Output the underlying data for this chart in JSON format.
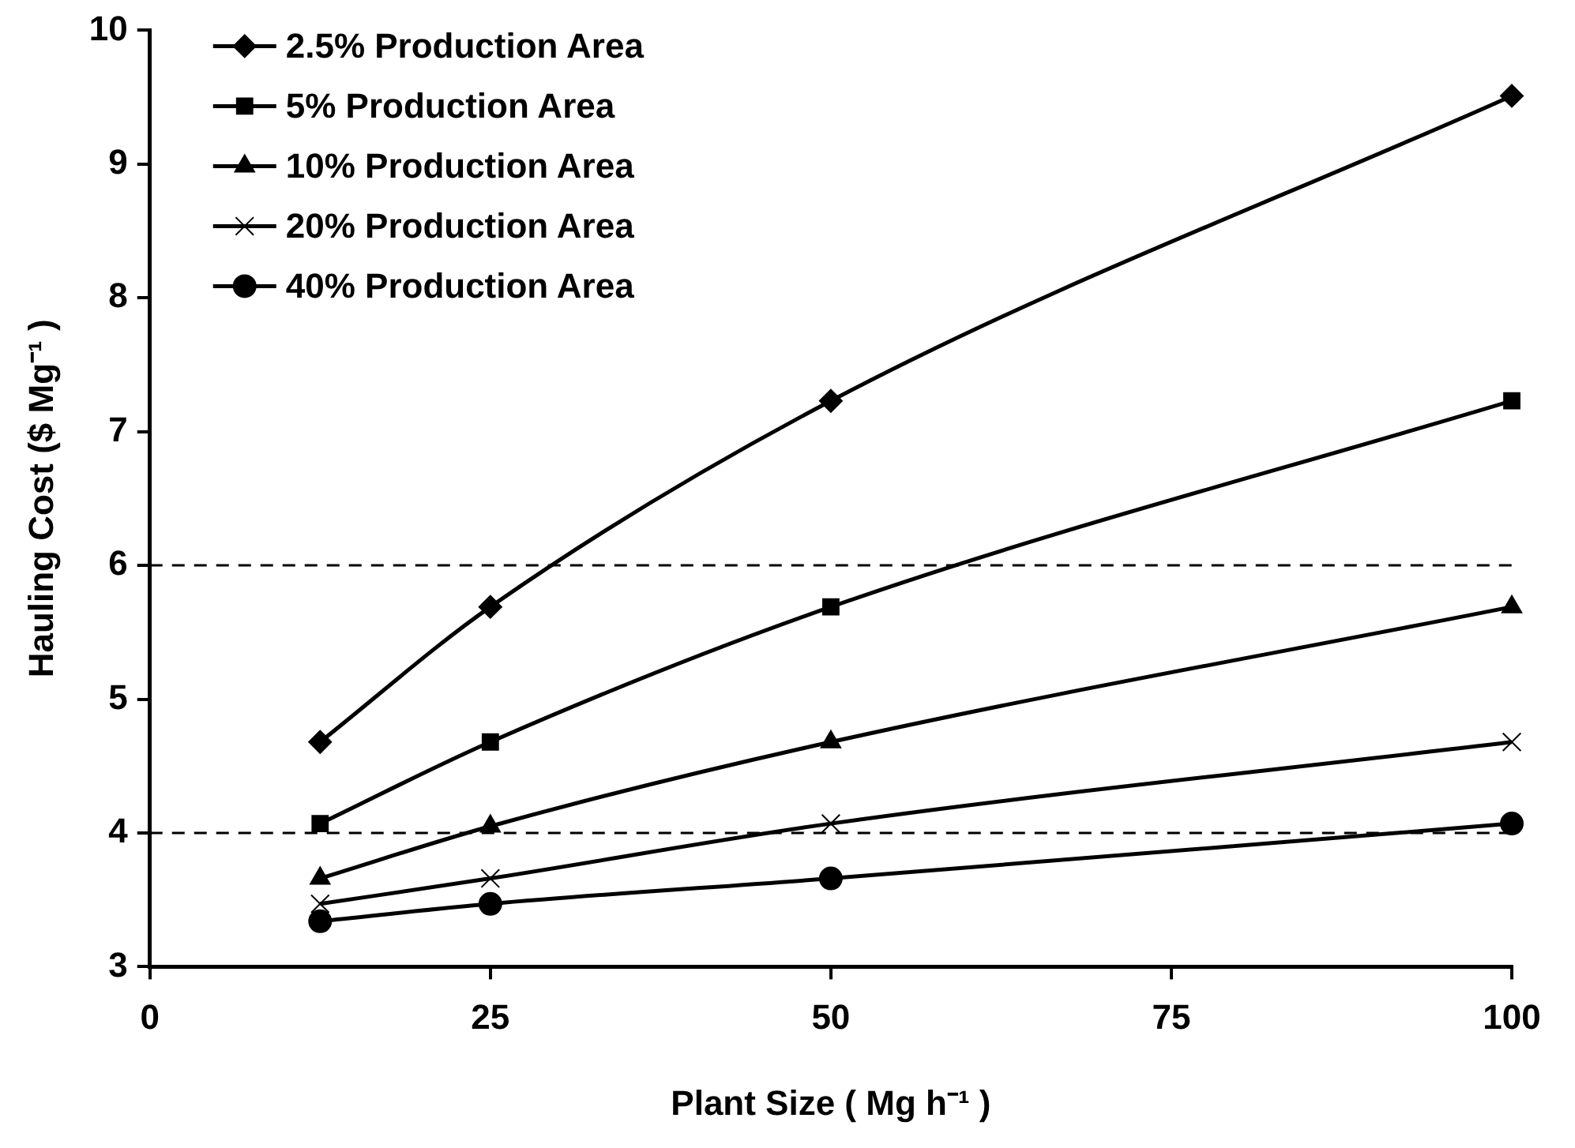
{
  "chart_data": {
    "type": "line",
    "xlabel": "Plant Size ( Mg h⁻¹ )",
    "ylabel": "Hauling Cost ($ Mg⁻¹ )",
    "x": [
      12.5,
      25,
      50,
      100
    ],
    "series": [
      {
        "name": "2.5% Production Area",
        "color": "#000000",
        "marker": "diamond",
        "values": [
          4.68,
          5.69,
          7.23,
          9.51
        ]
      },
      {
        "name": "5% Production Area",
        "color": "#000000",
        "marker": "square",
        "values": [
          4.07,
          4.68,
          5.69,
          7.23
        ]
      },
      {
        "name": "10% Production Area",
        "color": "#000000",
        "marker": "triangle",
        "values": [
          3.66,
          4.05,
          4.68,
          5.69
        ]
      },
      {
        "name": "20% Production Area",
        "color": "#000000",
        "marker": "cross",
        "values": [
          3.47,
          3.66,
          4.07,
          4.68
        ]
      },
      {
        "name": "40% Production Area",
        "color": "#000000",
        "marker": "circle",
        "values": [
          3.34,
          3.47,
          3.66,
          4.07
        ]
      }
    ],
    "xlim": [
      0,
      100
    ],
    "xticks": [
      0,
      25,
      50,
      75,
      100
    ],
    "ylim": [
      3,
      10
    ],
    "yticks": [
      3,
      4,
      5,
      6,
      7,
      8,
      9,
      10
    ],
    "ref_lines": [
      {
        "axis": "y",
        "value": 4,
        "color": "#000000",
        "line_style": "dashed"
      },
      {
        "axis": "y",
        "value": 6,
        "color": "#000000",
        "line_style": "dashed"
      }
    ],
    "grid": false,
    "legend": "top left",
    "line_style": "solid"
  }
}
